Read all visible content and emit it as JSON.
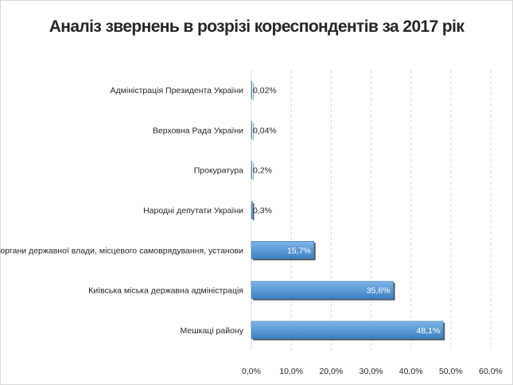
{
  "chart_data": {
    "type": "bar",
    "orientation": "horizontal",
    "title": "Аналіз звернень в розрізі кореспондентів за 2017 рік",
    "categories": [
      "Адміністрація Президента України",
      "Верховна Рада України",
      "Прокуратура",
      "Народні депутати України",
      "Інші органи державної влади, місцевого самоврядування, установи",
      "Київська міська державна адміністрація",
      "Мешкаці району"
    ],
    "values": [
      0.02,
      0.04,
      0.2,
      0.3,
      15.7,
      35.6,
      48.1
    ],
    "data_labels": [
      "0,02%",
      "0,04%",
      "0,2%",
      "0,3%",
      "15,7%",
      "35,6%",
      "48,1%"
    ],
    "xlim": [
      0,
      60
    ],
    "x_ticks": [
      0,
      10,
      20,
      30,
      40,
      50,
      60
    ],
    "x_tick_labels": [
      "0,0%",
      "10,0%",
      "20,0%",
      "30,0%",
      "40,0%",
      "50,0%",
      "60,0%"
    ],
    "grid": "vertical dashed",
    "legend": "none",
    "colors": {
      "bar": "#5b9bd5",
      "bar_dark": "#2e75b6",
      "shadow": "#404040",
      "grid": "#d9d9d9",
      "text": "#262626"
    }
  }
}
